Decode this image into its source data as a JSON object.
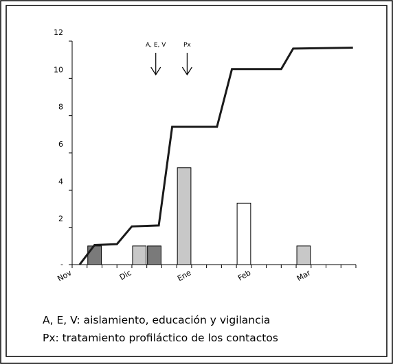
{
  "chart_data": {
    "type": "bar",
    "title": "",
    "xlabel": "",
    "ylabel": "",
    "ylim": [
      0,
      12
    ],
    "y_ticks": [
      "-",
      "2",
      "4",
      "6",
      "8",
      "10",
      "12"
    ],
    "y_tick_values": [
      0,
      2,
      4,
      6,
      8,
      10,
      12
    ],
    "x_labels": [
      {
        "label": "Nov",
        "slot": 0
      },
      {
        "label": "Dic",
        "slot": 4
      },
      {
        "label": "Ene",
        "slot": 8
      },
      {
        "label": "Feb",
        "slot": 12
      },
      {
        "label": "Mar",
        "slot": 16
      }
    ],
    "slots": 19,
    "bars": [
      {
        "slot": 1,
        "value": 1,
        "color": "#7a7a7a"
      },
      {
        "slot": 4,
        "value": 1,
        "color": "#c8c8c8"
      },
      {
        "slot": 5,
        "value": 1,
        "color": "#7a7a7a"
      },
      {
        "slot": 7,
        "value": 5.2,
        "color": "#c8c8c8"
      },
      {
        "slot": 11,
        "value": 3.3,
        "color": "#ffffff"
      },
      {
        "slot": 15,
        "value": 1,
        "color": "#c8c8c8"
      }
    ],
    "cumulative_line": [
      {
        "x": 0.5,
        "y": 0
      },
      {
        "x": 1.5,
        "y": 1.05
      },
      {
        "x": 3.0,
        "y": 1.1
      },
      {
        "x": 4.0,
        "y": 2.05
      },
      {
        "x": 5.8,
        "y": 2.1
      },
      {
        "x": 6.7,
        "y": 7.4
      },
      {
        "x": 9.7,
        "y": 7.4
      },
      {
        "x": 10.7,
        "y": 10.5
      },
      {
        "x": 14.0,
        "y": 10.5
      },
      {
        "x": 14.8,
        "y": 11.6
      },
      {
        "x": 18.8,
        "y": 11.65
      }
    ],
    "annotations": [
      {
        "text": "A, E, V",
        "slot": 5.6
      },
      {
        "text": "Px",
        "slot": 7.7
      }
    ],
    "notes": [
      "A, E, V: aislamiento, educación y vigilancia",
      "Px: tratamiento profiláctico de los contactos"
    ],
    "colors": {
      "line": "#1a1a1a",
      "axis": "#000000"
    },
    "grid": false,
    "legend": "none"
  }
}
